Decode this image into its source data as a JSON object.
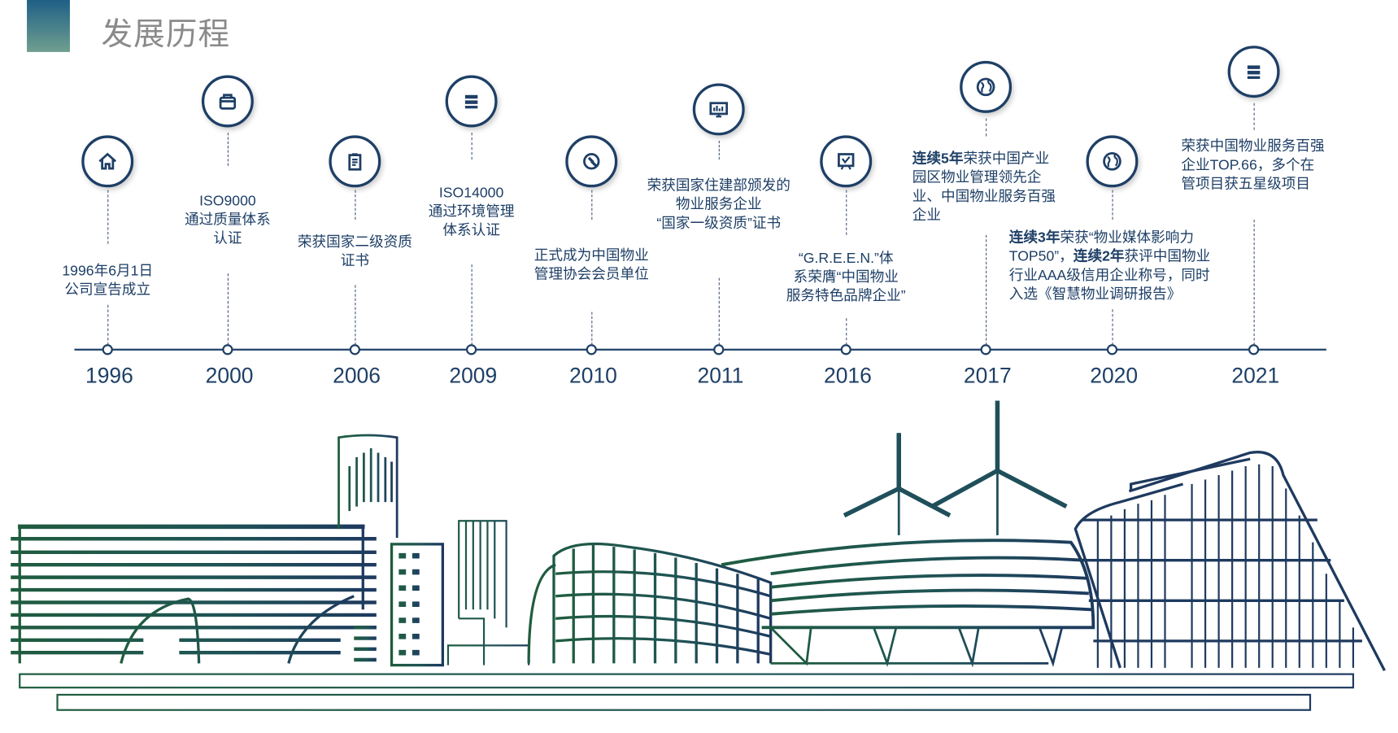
{
  "header": {
    "title": "发展历程"
  },
  "colors": {
    "accent": "#1e3f66",
    "city_green": "#1f5c3f",
    "city_navy": "#1e3a5f",
    "title_gray": "#8a8a8a"
  },
  "timeline": [
    {
      "year": "1996",
      "icon": "house-icon",
      "lines": [
        "1996年6月1日",
        "公司宣告成立"
      ]
    },
    {
      "year": "2000",
      "icon": "briefcase-icon",
      "lines": [
        "ISO9000",
        "通过质量体系",
        "认证"
      ]
    },
    {
      "year": "2006",
      "icon": "clipboard-icon",
      "lines": [
        "荣获国家二级资质",
        "证书"
      ]
    },
    {
      "year": "2009",
      "icon": "server-icon",
      "lines": [
        "ISO14000",
        "通过环境管理",
        "体系认证"
      ]
    },
    {
      "year": "2010",
      "icon": "gavel-icon",
      "lines": [
        "正式成为中国物业",
        "管理协会会员单位"
      ]
    },
    {
      "year": "2011",
      "icon": "monitor-chart-icon",
      "lines": [
        "荣获国家住建部颁发的",
        "物业服务企业",
        "“国家一级资质”证书"
      ]
    },
    {
      "year": "2016",
      "icon": "certificate-icon",
      "lines": [
        "“G.R.E.E.N.”体",
        "系荣膺“中国物业",
        "服务特色品牌企业”"
      ]
    },
    {
      "year": "2017",
      "icon": "globe-icon",
      "segments": [
        {
          "t": "连续5年",
          "b": true
        },
        {
          "t": "荣获中国产业园区物业管理领先企业、中国物业服务百强企业",
          "b": false
        }
      ]
    },
    {
      "year": "2020",
      "icon": "globe-icon",
      "segments": [
        {
          "t": "连续3年",
          "b": true
        },
        {
          "t": "荣获“物业媒体影响力TOP50”，",
          "b": false
        },
        {
          "t": "连续2年",
          "b": true
        },
        {
          "t": "获评中国物业行业AAA级信用企业称号，同时入选《智慧物业调研报告》",
          "b": false
        }
      ]
    },
    {
      "year": "2021",
      "icon": "server-icon",
      "segments": [
        {
          "t": "荣获中国物业服务百强企业TOP.66，多个在管项目获五星级项目",
          "b": false
        }
      ]
    }
  ]
}
